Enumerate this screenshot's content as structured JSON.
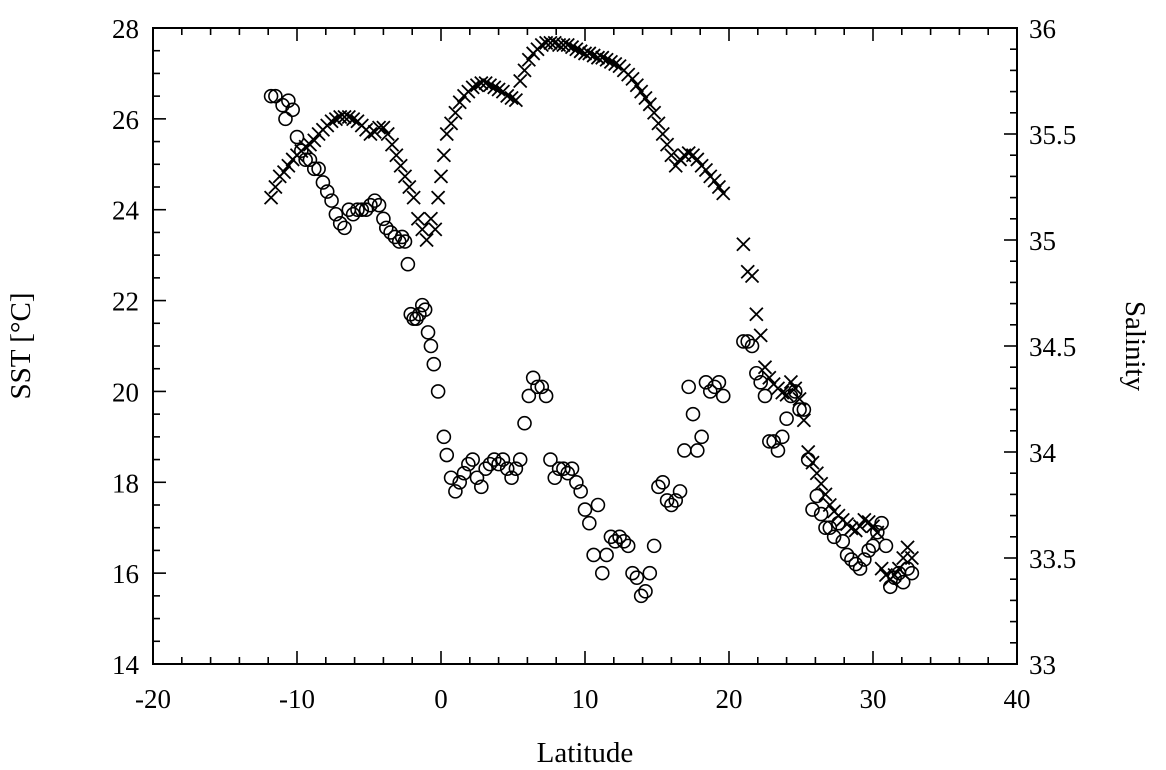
{
  "chart_data": {
    "type": "scatter",
    "title": "",
    "xlabel": "Latitude",
    "ylabel_left": "SST [°C]",
    "ylabel_right": "Salinity",
    "xlim": [
      -20,
      40
    ],
    "ylim_left": [
      14,
      28
    ],
    "ylim_right": [
      33,
      36
    ],
    "x_ticks": [
      "-20",
      "-10",
      "0",
      "10",
      "20",
      "30",
      "40"
    ],
    "y_left_ticks": [
      "14",
      "16",
      "18",
      "20",
      "22",
      "24",
      "26",
      "28"
    ],
    "y_right_ticks": [
      "33",
      "33.5",
      "34",
      "34.5",
      "35",
      "35.5",
      "36"
    ],
    "grid": false,
    "series": [
      {
        "marker": "circle",
        "axis": "left",
        "points": [
          [
            -11.8,
            26.5
          ],
          [
            -11.5,
            26.5
          ],
          [
            -11.0,
            26.3
          ],
          [
            -10.8,
            26.0
          ],
          [
            -10.6,
            26.4
          ],
          [
            -10.3,
            26.2
          ],
          [
            -10.0,
            25.6
          ],
          [
            -9.7,
            25.3
          ],
          [
            -9.4,
            25.1
          ],
          [
            -9.1,
            25.1
          ],
          [
            -8.8,
            24.9
          ],
          [
            -8.5,
            24.9
          ],
          [
            -8.2,
            24.6
          ],
          [
            -7.9,
            24.4
          ],
          [
            -7.6,
            24.2
          ],
          [
            -7.3,
            23.9
          ],
          [
            -7.0,
            23.7
          ],
          [
            -6.7,
            23.6
          ],
          [
            -6.4,
            24.0
          ],
          [
            -6.1,
            23.9
          ],
          [
            -5.8,
            24.0
          ],
          [
            -5.5,
            24.0
          ],
          [
            -5.2,
            24.0
          ],
          [
            -4.9,
            24.1
          ],
          [
            -4.6,
            24.2
          ],
          [
            -4.3,
            24.1
          ],
          [
            -4.0,
            23.8
          ],
          [
            -3.8,
            23.6
          ],
          [
            -3.5,
            23.5
          ],
          [
            -3.2,
            23.4
          ],
          [
            -2.9,
            23.3
          ],
          [
            -2.7,
            23.4
          ],
          [
            -2.5,
            23.3
          ],
          [
            -2.3,
            22.8
          ],
          [
            -2.1,
            21.7
          ],
          [
            -1.9,
            21.6
          ],
          [
            -1.7,
            21.6
          ],
          [
            -1.5,
            21.7
          ],
          [
            -1.3,
            21.9
          ],
          [
            -1.1,
            21.8
          ],
          [
            -0.9,
            21.3
          ],
          [
            -0.7,
            21.0
          ],
          [
            -0.5,
            20.6
          ],
          [
            -0.2,
            20.0
          ],
          [
            0.2,
            19.0
          ],
          [
            0.4,
            18.6
          ],
          [
            0.7,
            18.1
          ],
          [
            1.0,
            17.8
          ],
          [
            1.3,
            18.0
          ],
          [
            1.6,
            18.2
          ],
          [
            1.9,
            18.4
          ],
          [
            2.2,
            18.5
          ],
          [
            2.5,
            18.1
          ],
          [
            2.8,
            17.9
          ],
          [
            3.1,
            18.3
          ],
          [
            3.4,
            18.4
          ],
          [
            3.7,
            18.5
          ],
          [
            4.0,
            18.4
          ],
          [
            4.3,
            18.5
          ],
          [
            4.6,
            18.3
          ],
          [
            4.9,
            18.1
          ],
          [
            5.2,
            18.3
          ],
          [
            5.5,
            18.5
          ],
          [
            5.8,
            19.3
          ],
          [
            6.1,
            19.9
          ],
          [
            6.4,
            20.3
          ],
          [
            6.7,
            20.1
          ],
          [
            7.0,
            20.1
          ],
          [
            7.3,
            19.9
          ],
          [
            7.6,
            18.5
          ],
          [
            7.9,
            18.1
          ],
          [
            8.2,
            18.3
          ],
          [
            8.5,
            18.3
          ],
          [
            8.8,
            18.2
          ],
          [
            9.1,
            18.3
          ],
          [
            9.4,
            18.0
          ],
          [
            9.7,
            17.8
          ],
          [
            10.0,
            17.4
          ],
          [
            10.3,
            17.1
          ],
          [
            10.6,
            16.4
          ],
          [
            10.9,
            17.5
          ],
          [
            11.2,
            16.0
          ],
          [
            11.5,
            16.4
          ],
          [
            11.8,
            16.8
          ],
          [
            12.1,
            16.7
          ],
          [
            12.4,
            16.8
          ],
          [
            12.7,
            16.7
          ],
          [
            13.0,
            16.6
          ],
          [
            13.3,
            16.0
          ],
          [
            13.6,
            15.9
          ],
          [
            13.9,
            15.5
          ],
          [
            14.2,
            15.6
          ],
          [
            14.5,
            16.0
          ],
          [
            14.8,
            16.6
          ],
          [
            15.1,
            17.9
          ],
          [
            15.4,
            18.0
          ],
          [
            15.7,
            17.6
          ],
          [
            16.0,
            17.5
          ],
          [
            16.3,
            17.6
          ],
          [
            16.6,
            17.8
          ],
          [
            16.9,
            18.7
          ],
          [
            17.2,
            20.1
          ],
          [
            17.5,
            19.5
          ],
          [
            17.8,
            18.7
          ],
          [
            18.1,
            19.0
          ],
          [
            18.4,
            20.2
          ],
          [
            18.7,
            20.0
          ],
          [
            19.0,
            20.1
          ],
          [
            19.3,
            20.2
          ],
          [
            19.6,
            19.9
          ],
          [
            21.0,
            21.1
          ],
          [
            21.3,
            21.1
          ],
          [
            21.6,
            21.0
          ],
          [
            21.9,
            20.4
          ],
          [
            22.2,
            20.2
          ],
          [
            22.5,
            19.9
          ],
          [
            22.8,
            18.9
          ],
          [
            23.1,
            18.9
          ],
          [
            23.4,
            18.7
          ],
          [
            23.7,
            19.0
          ],
          [
            24.0,
            19.4
          ],
          [
            24.3,
            19.9
          ],
          [
            24.6,
            20.0
          ],
          [
            24.9,
            19.6
          ],
          [
            25.2,
            19.6
          ],
          [
            25.5,
            18.5
          ],
          [
            25.8,
            17.4
          ],
          [
            26.1,
            17.7
          ],
          [
            26.4,
            17.3
          ],
          [
            26.7,
            17.0
          ],
          [
            27.0,
            17.0
          ],
          [
            27.3,
            16.8
          ],
          [
            27.6,
            17.1
          ],
          [
            27.9,
            16.7
          ],
          [
            28.2,
            16.4
          ],
          [
            28.5,
            16.3
          ],
          [
            28.8,
            16.2
          ],
          [
            29.1,
            16.1
          ],
          [
            29.4,
            16.3
          ],
          [
            29.7,
            16.5
          ],
          [
            30.0,
            16.6
          ],
          [
            30.3,
            16.9
          ],
          [
            30.6,
            17.1
          ],
          [
            30.9,
            16.6
          ],
          [
            31.2,
            15.7
          ],
          [
            31.5,
            15.9
          ],
          [
            31.8,
            16.0
          ],
          [
            32.1,
            15.8
          ],
          [
            32.4,
            16.1
          ],
          [
            32.7,
            16.0
          ]
        ]
      },
      {
        "marker": "cross",
        "axis": "right",
        "points": [
          [
            -11.8,
            35.2
          ],
          [
            -11.5,
            35.25
          ],
          [
            -11.2,
            35.3
          ],
          [
            -10.9,
            35.32
          ],
          [
            -10.6,
            35.35
          ],
          [
            -10.3,
            35.38
          ],
          [
            -10.0,
            35.4
          ],
          [
            -9.7,
            35.42
          ],
          [
            -9.4,
            35.44
          ],
          [
            -9.1,
            35.45
          ],
          [
            -8.8,
            35.47
          ],
          [
            -8.5,
            35.5
          ],
          [
            -8.2,
            35.52
          ],
          [
            -7.9,
            35.54
          ],
          [
            -7.6,
            35.56
          ],
          [
            -7.3,
            35.57
          ],
          [
            -7.0,
            35.58
          ],
          [
            -6.7,
            35.58
          ],
          [
            -6.4,
            35.58
          ],
          [
            -6.1,
            35.57
          ],
          [
            -5.8,
            35.56
          ],
          [
            -5.5,
            35.54
          ],
          [
            -5.2,
            35.52
          ],
          [
            -4.9,
            35.5
          ],
          [
            -4.6,
            35.51
          ],
          [
            -4.3,
            35.53
          ],
          [
            -4.0,
            35.53
          ],
          [
            -3.7,
            35.5
          ],
          [
            -3.4,
            35.45
          ],
          [
            -3.1,
            35.4
          ],
          [
            -2.8,
            35.35
          ],
          [
            -2.5,
            35.3
          ],
          [
            -2.2,
            35.25
          ],
          [
            -1.9,
            35.2
          ],
          [
            -1.6,
            35.1
          ],
          [
            -1.3,
            35.05
          ],
          [
            -1.0,
            35.0
          ],
          [
            -0.7,
            35.1
          ],
          [
            -0.4,
            35.05
          ],
          [
            -0.2,
            35.2
          ],
          [
            0.0,
            35.3
          ],
          [
            0.2,
            35.4
          ],
          [
            0.4,
            35.5
          ],
          [
            0.7,
            35.55
          ],
          [
            1.0,
            35.6
          ],
          [
            1.3,
            35.65
          ],
          [
            1.6,
            35.68
          ],
          [
            1.9,
            35.7
          ],
          [
            2.2,
            35.72
          ],
          [
            2.5,
            35.73
          ],
          [
            2.8,
            35.74
          ],
          [
            3.1,
            35.74
          ],
          [
            3.4,
            35.73
          ],
          [
            3.7,
            35.72
          ],
          [
            4.0,
            35.71
          ],
          [
            4.3,
            35.7
          ],
          [
            4.6,
            35.68
          ],
          [
            4.9,
            35.67
          ],
          [
            5.2,
            35.66
          ],
          [
            5.5,
            35.75
          ],
          [
            5.8,
            35.8
          ],
          [
            6.1,
            35.85
          ],
          [
            6.4,
            35.88
          ],
          [
            6.7,
            35.9
          ],
          [
            7.0,
            35.92
          ],
          [
            7.3,
            35.93
          ],
          [
            7.6,
            35.93
          ],
          [
            7.9,
            35.93
          ],
          [
            8.2,
            35.92
          ],
          [
            8.5,
            35.92
          ],
          [
            8.8,
            35.92
          ],
          [
            9.1,
            35.91
          ],
          [
            9.4,
            35.9
          ],
          [
            9.7,
            35.89
          ],
          [
            10.0,
            35.88
          ],
          [
            10.3,
            35.88
          ],
          [
            10.6,
            35.87
          ],
          [
            10.9,
            35.86
          ],
          [
            11.2,
            35.86
          ],
          [
            11.5,
            35.85
          ],
          [
            11.8,
            35.84
          ],
          [
            12.1,
            35.83
          ],
          [
            12.4,
            35.82
          ],
          [
            12.7,
            35.8
          ],
          [
            13.0,
            35.78
          ],
          [
            13.3,
            35.76
          ],
          [
            13.6,
            35.73
          ],
          [
            13.9,
            35.7
          ],
          [
            14.2,
            35.67
          ],
          [
            14.5,
            35.64
          ],
          [
            14.8,
            35.6
          ],
          [
            15.1,
            35.55
          ],
          [
            15.4,
            35.5
          ],
          [
            15.7,
            35.45
          ],
          [
            16.0,
            35.4
          ],
          [
            16.3,
            35.35
          ],
          [
            16.6,
            35.38
          ],
          [
            16.9,
            35.4
          ],
          [
            17.2,
            35.41
          ],
          [
            17.5,
            35.4
          ],
          [
            17.8,
            35.38
          ],
          [
            18.1,
            35.35
          ],
          [
            18.4,
            35.33
          ],
          [
            18.7,
            35.3
          ],
          [
            19.0,
            35.28
          ],
          [
            19.3,
            35.25
          ],
          [
            19.6,
            35.22
          ],
          [
            21.0,
            34.98
          ],
          [
            21.3,
            34.85
          ],
          [
            21.6,
            34.83
          ],
          [
            21.9,
            34.65
          ],
          [
            22.2,
            34.55
          ],
          [
            22.5,
            34.4
          ],
          [
            22.8,
            34.35
          ],
          [
            23.1,
            34.32
          ],
          [
            23.4,
            34.3
          ],
          [
            23.7,
            34.28
          ],
          [
            24.0,
            34.27
          ],
          [
            24.3,
            34.33
          ],
          [
            24.6,
            34.3
          ],
          [
            24.9,
            34.25
          ],
          [
            25.2,
            34.15
          ],
          [
            25.5,
            34.0
          ],
          [
            25.8,
            33.95
          ],
          [
            26.1,
            33.9
          ],
          [
            26.4,
            33.85
          ],
          [
            26.7,
            33.8
          ],
          [
            27.0,
            33.75
          ],
          [
            27.3,
            33.72
          ],
          [
            27.6,
            33.7
          ],
          [
            27.9,
            33.68
          ],
          [
            28.2,
            33.66
          ],
          [
            28.5,
            33.64
          ],
          [
            28.8,
            33.63
          ],
          [
            29.1,
            33.65
          ],
          [
            29.4,
            33.68
          ],
          [
            29.7,
            33.67
          ],
          [
            30.0,
            33.65
          ],
          [
            30.3,
            33.62
          ],
          [
            30.6,
            33.45
          ],
          [
            30.9,
            33.42
          ],
          [
            31.2,
            33.4
          ],
          [
            31.5,
            33.42
          ],
          [
            31.8,
            33.45
          ],
          [
            32.1,
            33.5
          ],
          [
            32.4,
            33.55
          ],
          [
            32.7,
            33.5
          ]
        ]
      }
    ]
  }
}
